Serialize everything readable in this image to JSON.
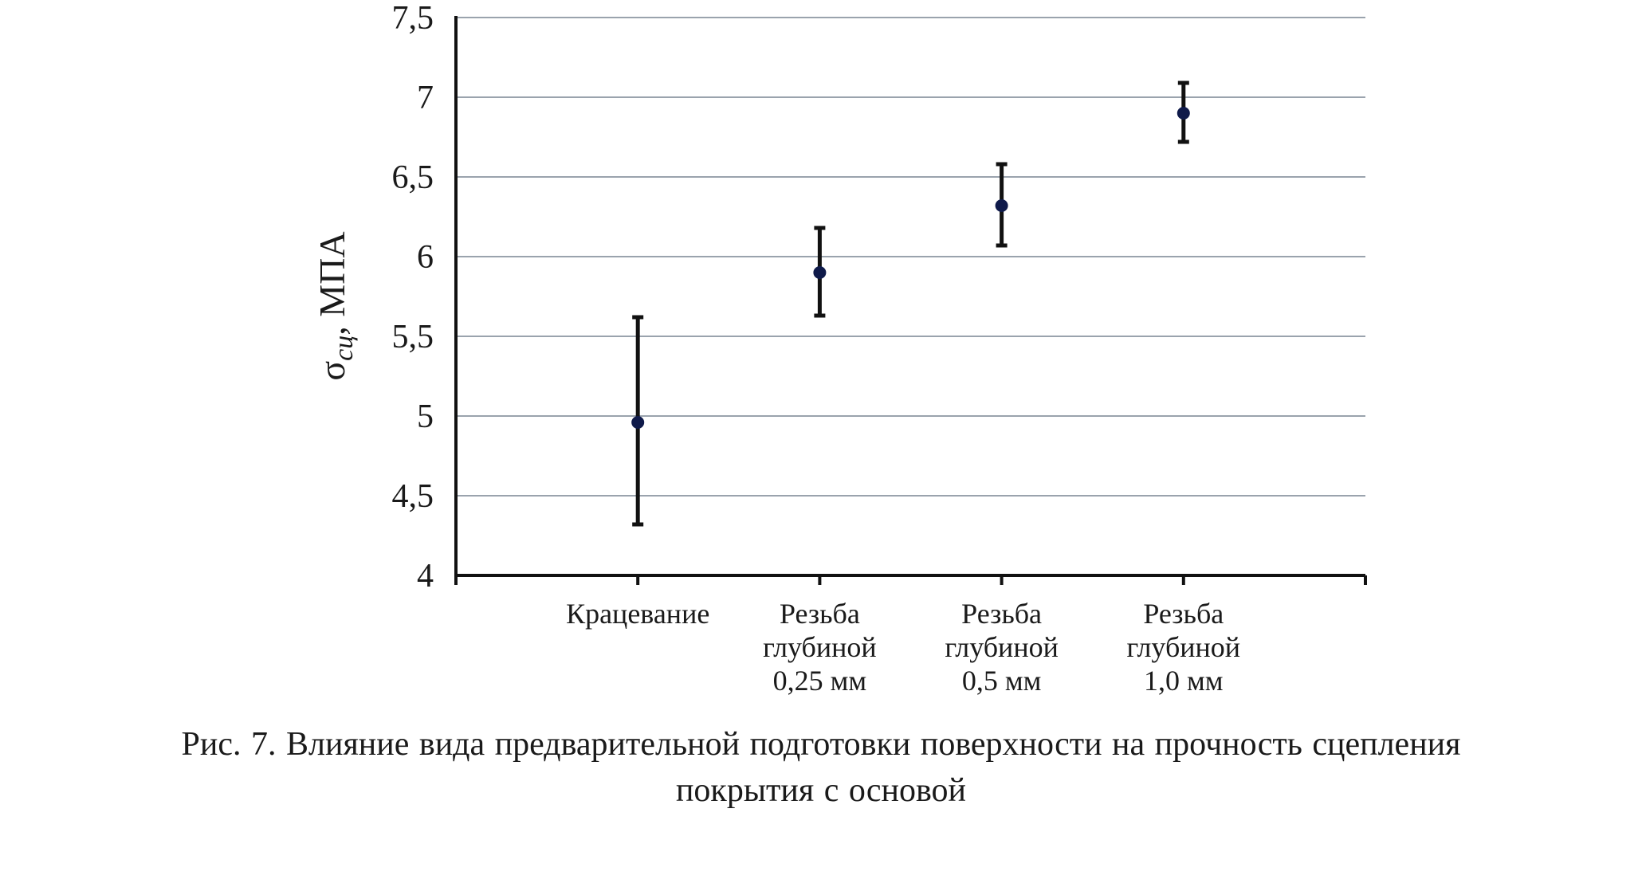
{
  "chart_data": {
    "type": "scatter",
    "variant": "points-with-error-bars",
    "categories": [
      [
        "Крацевание"
      ],
      [
        "Резьба",
        "глубиной",
        "0,25 мм"
      ],
      [
        "Резьба",
        "глубиной",
        "0,5 мм"
      ],
      [
        "Резьба",
        "глубиной",
        "1,0 мм"
      ]
    ],
    "series": [
      {
        "values": [
          4.96,
          5.9,
          6.32,
          6.9
        ],
        "err_low": [
          4.32,
          5.63,
          6.07,
          6.72
        ],
        "err_high": [
          5.62,
          6.18,
          6.58,
          7.09
        ]
      }
    ],
    "ylabel_main": "σ",
    "ylabel_sub": "сц",
    "ylabel_unit": ", МПА",
    "ylim": [
      4,
      7.5
    ],
    "ytick_values": [
      4,
      4.5,
      5,
      5.5,
      6,
      6.5,
      7,
      7.5
    ],
    "ytick_labels": [
      "4",
      "4,5",
      "5",
      "5,5",
      "6",
      "6,5",
      "7",
      "7,5"
    ],
    "grid": "horizontal",
    "legend": "none",
    "colors": {
      "point": "#0f1a4a",
      "errorbar": "#111111",
      "grid": "#9aa3ad",
      "axis": "#111111"
    }
  },
  "caption": {
    "line1": "Рис. 7. Влияние вида предварительной подготовки поверхности на прочность сцепления",
    "line2": "покрытия с основой"
  }
}
